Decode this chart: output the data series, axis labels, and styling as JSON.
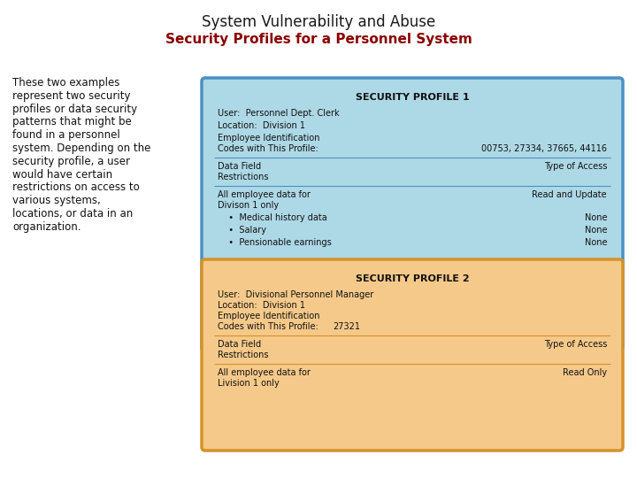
{
  "title": "System Vulnerability and Abuse",
  "subtitle": "Security Profiles for a Personnel System",
  "title_color": "#1a1a1a",
  "subtitle_color": "#8B0000",
  "left_text_lines": [
    "These two examples",
    "represent two security",
    "profiles or data security",
    "patterns that might be",
    "found in a personnel",
    "system. Depending on the",
    "security profile, a user",
    "would have certain",
    "restrictions on access to",
    "various systems,",
    "locations, or data in an",
    "organization."
  ],
  "profile1": {
    "title": "SECURITY PROFILE 1",
    "bg_color": "#ADD8E6",
    "border_color": "#4A90C4",
    "user": "User:  Personnel Dept. Clerk",
    "location": "Location:  Division 1",
    "emp_id_line1": "Employee Identification",
    "emp_id_line2": "Codes with This Profile:",
    "emp_id_value": "00753, 27334, 37665, 44116",
    "col1_header1": "Data Field",
    "col1_header2": "Restrictions",
    "col2_header": "Type of Access",
    "row1_col1a": "All employee data for",
    "row1_col1b": "Divison 1 only",
    "row1_col2": "Read and Update",
    "bullets": [
      [
        "  •  Medical history data",
        "None"
      ],
      [
        "  •  Salary",
        "None"
      ],
      [
        "  •  Pensionable earnings",
        "None"
      ]
    ]
  },
  "profile2": {
    "title": "SECURITY PROFILE 2",
    "bg_color": "#F5C98A",
    "border_color": "#D4922A",
    "user": "User:  Divisional Personnel Manager",
    "location": "Location:  Division 1",
    "emp_id_line1": "Employee Identification",
    "emp_id_line2": "Codes with This Profile:",
    "emp_id_value": "27321",
    "col1_header1": "Data Field",
    "col1_header2": "Restrictions",
    "col2_header": "Type of Access",
    "row1_col1a": "All employee data for",
    "row1_col1b": "Livision 1 only",
    "row1_col2": "Read Only"
  },
  "fig_w": 7.2,
  "fig_h": 5.4,
  "dpi": 100
}
